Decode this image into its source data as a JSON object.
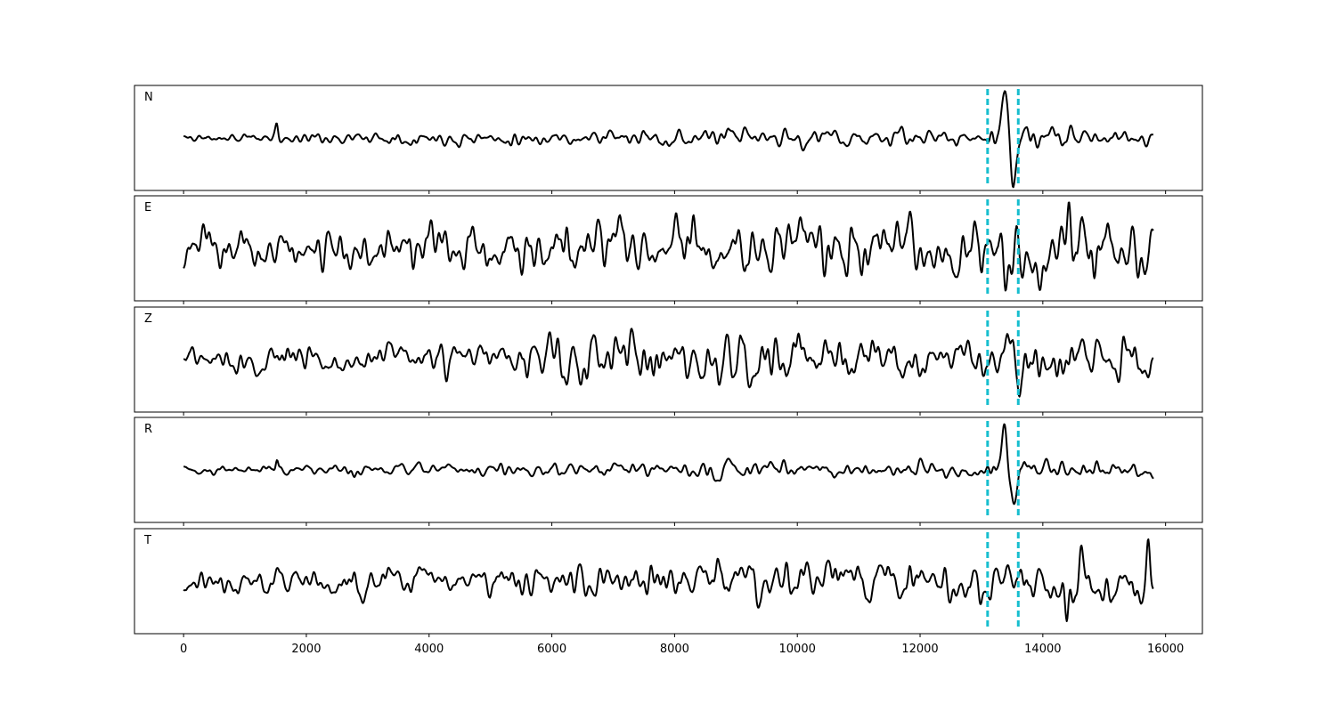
{
  "chart_data": {
    "type": "line",
    "panels": [
      {
        "label": "N",
        "seed": 11,
        "amp": 0.16,
        "env": [
          [
            0,
            0.35
          ],
          [
            6000,
            0.55
          ],
          [
            10000,
            0.75
          ],
          [
            13000,
            0.55
          ],
          [
            13200,
            0.9
          ],
          [
            13600,
            1.0
          ],
          [
            14500,
            0.7
          ],
          [
            15800,
            0.6
          ]
        ],
        "features": [
          {
            "x": 13380,
            "v": 0.92,
            "w": 75
          },
          {
            "x": 13520,
            "v": -0.85,
            "w": 70
          },
          {
            "x": 1520,
            "v": 0.28,
            "w": 30
          }
        ]
      },
      {
        "label": "E",
        "seed": 23,
        "amp": 0.4,
        "env": [
          [
            0,
            0.55
          ],
          [
            7000,
            0.75
          ],
          [
            11000,
            0.85
          ],
          [
            15800,
            0.95
          ]
        ],
        "features": [
          {
            "x": 14420,
            "v": 0.85,
            "w": 45
          },
          {
            "x": 13400,
            "v": -0.8,
            "w": 45
          }
        ]
      },
      {
        "label": "Z",
        "seed": 37,
        "amp": 0.34,
        "env": [
          [
            0,
            0.45
          ],
          [
            5800,
            0.6
          ],
          [
            6200,
            0.95
          ],
          [
            9500,
            0.95
          ],
          [
            11500,
            0.7
          ],
          [
            13500,
            0.85
          ],
          [
            15800,
            0.75
          ]
        ],
        "features": [
          {
            "x": 7300,
            "v": 0.82,
            "w": 50
          },
          {
            "x": 13620,
            "v": -0.95,
            "w": 35
          }
        ]
      },
      {
        "label": "R",
        "seed": 41,
        "amp": 0.16,
        "env": [
          [
            0,
            0.35
          ],
          [
            6000,
            0.55
          ],
          [
            10000,
            0.75
          ],
          [
            13000,
            0.55
          ],
          [
            13200,
            0.9
          ],
          [
            13600,
            1.0
          ],
          [
            14500,
            0.7
          ],
          [
            15800,
            0.6
          ]
        ],
        "features": [
          {
            "x": 13380,
            "v": 0.92,
            "w": 75
          },
          {
            "x": 13520,
            "v": -0.85,
            "w": 70
          },
          {
            "x": 1520,
            "v": 0.3,
            "w": 30
          }
        ]
      },
      {
        "label": "T",
        "seed": 59,
        "amp": 0.34,
        "env": [
          [
            0,
            0.5
          ],
          [
            7000,
            0.65
          ],
          [
            10000,
            0.8
          ],
          [
            15800,
            0.95
          ]
        ],
        "features": [
          {
            "x": 15720,
            "v": 0.85,
            "w": 40
          },
          {
            "x": 14400,
            "v": -0.85,
            "w": 40
          }
        ]
      }
    ],
    "markers": [
      13100,
      13600
    ],
    "x_range": [
      0,
      15800
    ],
    "xlim": [
      -800,
      16600
    ],
    "ylim": [
      -1.1,
      1.1
    ],
    "x_ticks": [
      0,
      2000,
      4000,
      6000,
      8000,
      10000,
      12000,
      14000,
      16000
    ],
    "x_tick_labels": [
      "0",
      "2000",
      "4000",
      "6000",
      "8000",
      "10000",
      "12000",
      "14000",
      "16000"
    ],
    "colors": {
      "trace": "#000000",
      "marker": "#17becf",
      "frame": "#000000"
    },
    "y_ticks_visible": false,
    "grid": false
  }
}
